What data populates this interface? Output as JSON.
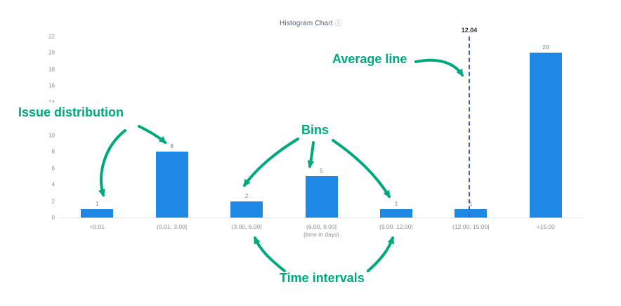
{
  "chart": {
    "title": "Histogram Chart",
    "info_icon": "ⓘ",
    "average_label": "12.04"
  },
  "chart_data": {
    "type": "bar",
    "title": "Histogram Chart",
    "categories": [
      "<0.01",
      "(0.01, 3.00]",
      "(3.00, 6.00]",
      "(6.00, 9.00]",
      "(9.00, 12.00]",
      "(12.00, 15.00]",
      "+15.00"
    ],
    "values": [
      1,
      8,
      2,
      5,
      1,
      1,
      20
    ],
    "average_line_value": 12.04,
    "xlabel": "(time in days)",
    "ylabel": "",
    "ylim": [
      0,
      22
    ],
    "ytick_step": 2,
    "grid": false,
    "legend": false,
    "bar_color": "#1E88E5",
    "average_line_color": "#3A5FCD"
  },
  "annotations": {
    "color": "#00A87E",
    "issue_distribution_label": "Issue distribution",
    "bins_label": "Bins",
    "average_line_label": "Average line",
    "time_intervals_label": "Time intervals"
  }
}
